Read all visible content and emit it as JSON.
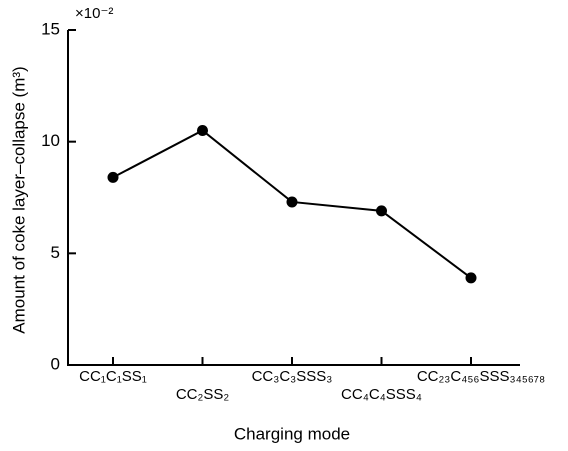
{
  "chart_data": {
    "type": "line",
    "multiplier": "×10⁻²",
    "x_label": "Charging mode",
    "y_label": "Amount of coke layer–collapse (m³)",
    "categories": [
      "CC₁C₁SS₁",
      "CC₂SS₂",
      "CC₃C₃SSS₃",
      "CC₄C₄SSS₄",
      "CC₂₃C₄₅₆SSS₃₄₅₆₇₈"
    ],
    "series": [
      {
        "name": "Amount",
        "color": "#000000",
        "values": [
          8.4,
          10.5,
          7.3,
          6.9,
          3.9
        ]
      }
    ],
    "ylim": [
      0,
      15
    ],
    "yticks": [
      0,
      5,
      10,
      15
    ]
  }
}
